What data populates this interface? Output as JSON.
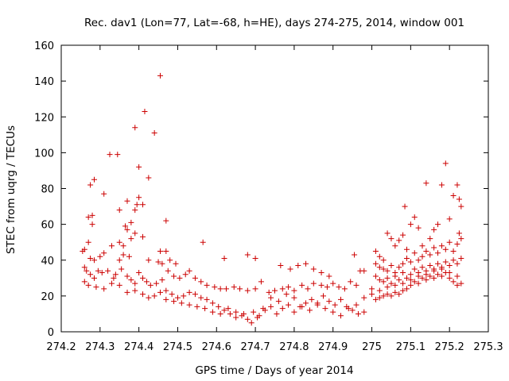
{
  "chart_data": {
    "type": "scatter",
    "title": "Rec. dav1 (Lon=77, Lat=-68, h=HE), days 274-275, 2014, window 001",
    "xlabel": "GPS time / Days of year 2014",
    "ylabel": "STEC from uqrg / TECUs",
    "xlim": [
      274.2,
      275.3
    ],
    "ylim": [
      0,
      160
    ],
    "xticks": [
      274.2,
      274.3,
      274.4,
      274.5,
      274.6,
      274.7,
      274.8,
      274.9,
      275,
      275.1,
      275.2,
      275.3
    ],
    "xtick_labels": [
      "274.2",
      "274.3",
      "274.4",
      "274.5",
      "274.6",
      "274.7",
      "274.8",
      "274.9",
      "275",
      "275.1",
      "275.2",
      "275.3"
    ],
    "yticks": [
      0,
      20,
      40,
      60,
      80,
      100,
      120,
      140,
      160
    ],
    "ytick_labels": [
      "0",
      "20",
      "40",
      "60",
      "80",
      "100",
      "120",
      "140",
      "160"
    ],
    "grid": false,
    "marker": "plus",
    "color": "#cc0000",
    "series": [
      {
        "points": [
          [
            274.455,
            143
          ],
          [
            274.415,
            123
          ],
          [
            274.44,
            111
          ],
          [
            274.39,
            114
          ],
          [
            274.325,
            99
          ],
          [
            274.345,
            99
          ],
          [
            274.4,
            92
          ],
          [
            274.425,
            86
          ],
          [
            274.285,
            85
          ],
          [
            274.275,
            82
          ],
          [
            274.31,
            77
          ],
          [
            274.4,
            75
          ],
          [
            274.37,
            73
          ],
          [
            274.395,
            71
          ],
          [
            274.41,
            71
          ],
          [
            274.35,
            68
          ],
          [
            274.39,
            68
          ],
          [
            274.28,
            65
          ],
          [
            274.27,
            64
          ],
          [
            274.47,
            62
          ],
          [
            274.38,
            61
          ],
          [
            274.28,
            60
          ],
          [
            274.365,
            59
          ],
          [
            274.37,
            57
          ],
          [
            274.39,
            55
          ],
          [
            274.41,
            53
          ],
          [
            274.38,
            52
          ],
          [
            274.35,
            50
          ],
          [
            274.565,
            50
          ],
          [
            274.27,
            50
          ],
          [
            274.36,
            48
          ],
          [
            274.33,
            48
          ],
          [
            274.47,
            45
          ],
          [
            274.455,
            45
          ],
          [
            274.26,
            46
          ],
          [
            274.255,
            45
          ],
          [
            274.31,
            44
          ],
          [
            274.36,
            43
          ],
          [
            274.375,
            42
          ],
          [
            274.3,
            42
          ],
          [
            274.275,
            41
          ],
          [
            274.285,
            40
          ],
          [
            274.35,
            40
          ],
          [
            274.425,
            40
          ],
          [
            274.45,
            39
          ],
          [
            274.46,
            38
          ],
          [
            274.48,
            40
          ],
          [
            274.495,
            38
          ],
          [
            274.62,
            41
          ],
          [
            274.68,
            43
          ],
          [
            274.7,
            41
          ],
          [
            274.765,
            37
          ],
          [
            274.79,
            35
          ],
          [
            274.81,
            37
          ],
          [
            274.83,
            38
          ],
          [
            274.85,
            35
          ],
          [
            274.87,
            33
          ],
          [
            274.89,
            31
          ],
          [
            274.955,
            43
          ],
          [
            274.97,
            34
          ],
          [
            274.98,
            34
          ],
          [
            274.26,
            36
          ],
          [
            274.265,
            34
          ],
          [
            274.275,
            32
          ],
          [
            274.285,
            30
          ],
          [
            274.295,
            34
          ],
          [
            274.305,
            33
          ],
          [
            274.32,
            34
          ],
          [
            274.335,
            30
          ],
          [
            274.34,
            32
          ],
          [
            274.355,
            35
          ],
          [
            274.37,
            31
          ],
          [
            274.38,
            29
          ],
          [
            274.39,
            27
          ],
          [
            274.4,
            33
          ],
          [
            274.41,
            30
          ],
          [
            274.42,
            28
          ],
          [
            274.43,
            26
          ],
          [
            274.445,
            27
          ],
          [
            274.46,
            29
          ],
          [
            274.475,
            34
          ],
          [
            274.49,
            31
          ],
          [
            274.505,
            30
          ],
          [
            274.52,
            32
          ],
          [
            274.53,
            34
          ],
          [
            274.545,
            30
          ],
          [
            274.56,
            28
          ],
          [
            274.575,
            26
          ],
          [
            274.595,
            25
          ],
          [
            274.61,
            24
          ],
          [
            274.625,
            24
          ],
          [
            274.645,
            25
          ],
          [
            274.66,
            24
          ],
          [
            274.68,
            23
          ],
          [
            274.7,
            24
          ],
          [
            274.715,
            28
          ],
          [
            274.735,
            22
          ],
          [
            274.75,
            23
          ],
          [
            274.77,
            24
          ],
          [
            274.785,
            25
          ],
          [
            274.8,
            23
          ],
          [
            274.82,
            26
          ],
          [
            274.835,
            24
          ],
          [
            274.85,
            27
          ],
          [
            274.87,
            26
          ],
          [
            274.885,
            25
          ],
          [
            274.9,
            27
          ],
          [
            274.915,
            25
          ],
          [
            274.93,
            24
          ],
          [
            274.945,
            28
          ],
          [
            274.96,
            26
          ],
          [
            274.26,
            28
          ],
          [
            274.27,
            26
          ],
          [
            274.29,
            25
          ],
          [
            274.31,
            24
          ],
          [
            274.33,
            27
          ],
          [
            274.35,
            26
          ],
          [
            274.37,
            22
          ],
          [
            274.39,
            23
          ],
          [
            274.41,
            21
          ],
          [
            274.425,
            19
          ],
          [
            274.44,
            20
          ],
          [
            274.455,
            22
          ],
          [
            274.47,
            23
          ],
          [
            274.485,
            21
          ],
          [
            274.5,
            19
          ],
          [
            274.515,
            20
          ],
          [
            274.53,
            22
          ],
          [
            274.545,
            21
          ],
          [
            274.56,
            19
          ],
          [
            274.575,
            18
          ],
          [
            274.59,
            16
          ],
          [
            274.605,
            14
          ],
          [
            274.62,
            12
          ],
          [
            274.635,
            10
          ],
          [
            274.65,
            8
          ],
          [
            274.665,
            9
          ],
          [
            274.68,
            7
          ],
          [
            274.695,
            11
          ],
          [
            274.71,
            9
          ],
          [
            274.725,
            12
          ],
          [
            274.74,
            14
          ],
          [
            274.755,
            10
          ],
          [
            274.77,
            13
          ],
          [
            274.785,
            15
          ],
          [
            274.8,
            11
          ],
          [
            274.815,
            14
          ],
          [
            274.83,
            16
          ],
          [
            274.845,
            18
          ],
          [
            274.86,
            15
          ],
          [
            274.875,
            20
          ],
          [
            274.89,
            17
          ],
          [
            274.905,
            15
          ],
          [
            274.92,
            18
          ],
          [
            274.935,
            14
          ],
          [
            274.95,
            12
          ],
          [
            274.965,
            10
          ],
          [
            274.98,
            11
          ],
          [
            274.47,
            18
          ],
          [
            274.49,
            17
          ],
          [
            274.51,
            16
          ],
          [
            274.53,
            15
          ],
          [
            274.55,
            14
          ],
          [
            274.57,
            13
          ],
          [
            274.59,
            11
          ],
          [
            274.61,
            10
          ],
          [
            274.63,
            13
          ],
          [
            274.65,
            11
          ],
          [
            274.67,
            10
          ],
          [
            274.69,
            5
          ],
          [
            274.705,
            8
          ],
          [
            274.72,
            13
          ],
          [
            274.74,
            19
          ],
          [
            274.76,
            17
          ],
          [
            274.78,
            21
          ],
          [
            274.8,
            19
          ],
          [
            274.82,
            14
          ],
          [
            274.84,
            12
          ],
          [
            274.86,
            16
          ],
          [
            274.88,
            13
          ],
          [
            274.9,
            11
          ],
          [
            274.92,
            9
          ],
          [
            274.94,
            13
          ],
          [
            274.96,
            15
          ],
          [
            274.98,
            19
          ],
          [
            275.01,
            45
          ],
          [
            275.02,
            42
          ],
          [
            275.03,
            40
          ],
          [
            275.04,
            55
          ],
          [
            275.05,
            52
          ],
          [
            275.06,
            48
          ],
          [
            275.07,
            51
          ],
          [
            275.08,
            54
          ],
          [
            275.085,
            70
          ],
          [
            275.09,
            46
          ],
          [
            275.1,
            60
          ],
          [
            275.11,
            64
          ],
          [
            275.12,
            58
          ],
          [
            275.13,
            48
          ],
          [
            275.14,
            83
          ],
          [
            275.15,
            52
          ],
          [
            275.16,
            57
          ],
          [
            275.17,
            60
          ],
          [
            275.18,
            82
          ],
          [
            275.19,
            94
          ],
          [
            275.2,
            63
          ],
          [
            275.21,
            76
          ],
          [
            275.22,
            82
          ],
          [
            275.225,
            74
          ],
          [
            275.23,
            70
          ],
          [
            275.225,
            55
          ],
          [
            275.01,
            38
          ],
          [
            275.02,
            36
          ],
          [
            275.03,
            35
          ],
          [
            275.04,
            34
          ],
          [
            275.05,
            37
          ],
          [
            275.06,
            33
          ],
          [
            275.07,
            36
          ],
          [
            275.08,
            38
          ],
          [
            275.09,
            41
          ],
          [
            275.1,
            39
          ],
          [
            275.11,
            44
          ],
          [
            275.12,
            40
          ],
          [
            275.13,
            42
          ],
          [
            275.14,
            45
          ],
          [
            275.15,
            43
          ],
          [
            275.16,
            47
          ],
          [
            275.17,
            44
          ],
          [
            275.18,
            48
          ],
          [
            275.19,
            46
          ],
          [
            275.2,
            50
          ],
          [
            275.21,
            45
          ],
          [
            275.22,
            49
          ],
          [
            275.23,
            52
          ],
          [
            275.01,
            31
          ],
          [
            275.02,
            29
          ],
          [
            275.03,
            28
          ],
          [
            275.04,
            30
          ],
          [
            275.05,
            27
          ],
          [
            275.06,
            31
          ],
          [
            275.07,
            29
          ],
          [
            275.08,
            33
          ],
          [
            275.09,
            30
          ],
          [
            275.1,
            32
          ],
          [
            275.11,
            35
          ],
          [
            275.12,
            33
          ],
          [
            275.13,
            36
          ],
          [
            275.14,
            34
          ],
          [
            275.15,
            37
          ],
          [
            275.16,
            35
          ],
          [
            275.17,
            38
          ],
          [
            275.18,
            36
          ],
          [
            275.19,
            39
          ],
          [
            275.2,
            37
          ],
          [
            275.21,
            40
          ],
          [
            275.22,
            38
          ],
          [
            275.23,
            41
          ],
          [
            275.0,
            21
          ],
          [
            275.01,
            18
          ],
          [
            275.02,
            19
          ],
          [
            275.03,
            20
          ],
          [
            275.04,
            21
          ],
          [
            275.05,
            20
          ],
          [
            275.06,
            22
          ],
          [
            275.07,
            21
          ],
          [
            275.08,
            23
          ],
          [
            275.09,
            24
          ],
          [
            275.1,
            26
          ],
          [
            275.11,
            28
          ],
          [
            275.12,
            27
          ],
          [
            275.13,
            30
          ],
          [
            275.14,
            29
          ],
          [
            275.15,
            31
          ],
          [
            275.16,
            30
          ],
          [
            275.17,
            32
          ],
          [
            275.18,
            31
          ],
          [
            275.19,
            33
          ],
          [
            275.2,
            30
          ],
          [
            275.21,
            28
          ],
          [
            275.22,
            26
          ],
          [
            275.23,
            27
          ],
          [
            275.0,
            24
          ],
          [
            275.02,
            23
          ],
          [
            275.04,
            25
          ],
          [
            275.06,
            26
          ],
          [
            275.08,
            27
          ],
          [
            275.1,
            29
          ],
          [
            275.12,
            31
          ],
          [
            275.14,
            32
          ],
          [
            275.16,
            34
          ],
          [
            275.18,
            35
          ],
          [
            275.2,
            33
          ],
          [
            275.22,
            31
          ]
        ]
      }
    ]
  }
}
